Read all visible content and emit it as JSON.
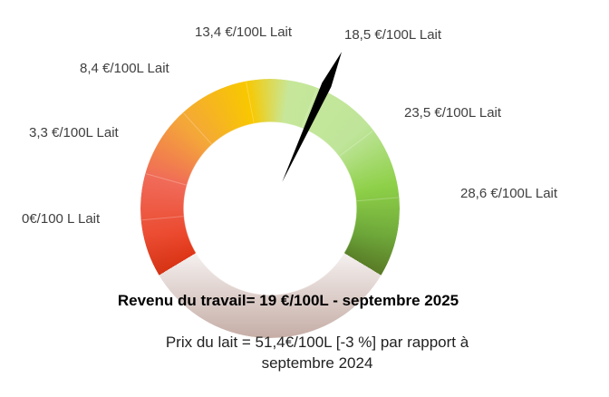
{
  "chart_data": {
    "type": "gauge",
    "title": "Revenu du travail= 19 €/100L - septembre 2025",
    "subtitle": "Prix du lait = 51,4€/100L [-3 %] par rapport à septembre 2024",
    "value": 19,
    "ylim": [
      -4.1,
      34.3
    ],
    "yticks": [
      {
        "value": 0,
        "label": "0€/100 L Lait"
      },
      {
        "value": 3.3,
        "label": "3,3 €/100L Lait"
      },
      {
        "value": 8.4,
        "label": "8,4 €/100L Lait"
      },
      {
        "value": 13.4,
        "label": "13,4 €/100L Lait"
      },
      {
        "value": 18.5,
        "label": "18,5 €/100L Lait"
      },
      {
        "value": 23.5,
        "label": "23,5 €/100L Lait"
      },
      {
        "value": 28.6,
        "label": "28,6 €/100L Lait"
      }
    ],
    "needle_color": "#000000"
  }
}
